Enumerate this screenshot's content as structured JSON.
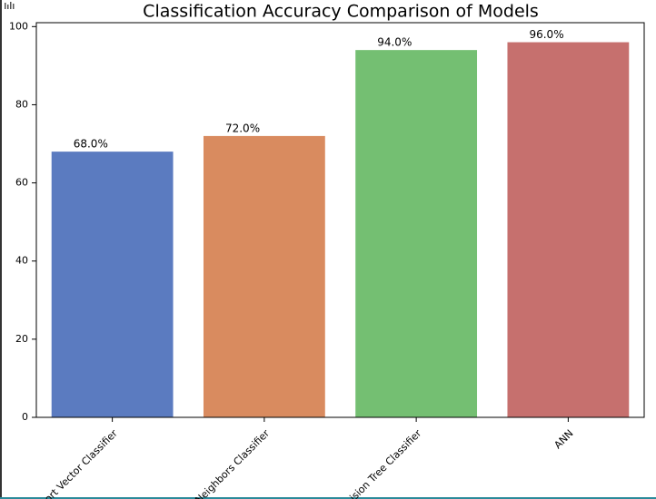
{
  "chart_data": {
    "type": "bar",
    "title": "Classification Accuracy Comparison of Models",
    "categories": [
      "ort Vector Classifier",
      "Neighbors Classifier",
      "ision Tree Classifier",
      "ANN"
    ],
    "series": [
      {
        "values": [
          68,
          72,
          94,
          96
        ],
        "value_labels": [
          "68.0%",
          "72.0%",
          "94.0%",
          "96.0%"
        ],
        "colors": [
          "#5b7bc0",
          "#d98b5f",
          "#74bf72",
          "#c6706e"
        ]
      }
    ],
    "ylim": [
      0,
      101
    ],
    "yticks": [
      0,
      20,
      40,
      60,
      80,
      100
    ],
    "grid": false
  }
}
